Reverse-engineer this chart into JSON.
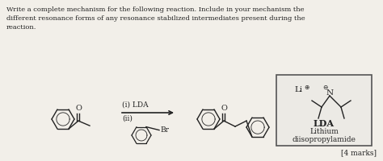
{
  "bg_color": "#f2efe9",
  "text_color": "#222222",
  "paragraph_line1": "Write a complete mechanism for the following reaction. Include in your mechanism the",
  "paragraph_line2": "different resonance forms of any resonance stabilized intermediates present during the",
  "paragraph_line3": "reaction.",
  "step1": "(i) LDA",
  "step2": "(ii)",
  "br_label": "Br",
  "o_label": "O",
  "lda_title": "LDA",
  "lda_sub1": "Lithium",
  "lda_sub2": "diisopropylamide",
  "marks": "[4 marks]",
  "li_label": "Li",
  "n_label": "N"
}
